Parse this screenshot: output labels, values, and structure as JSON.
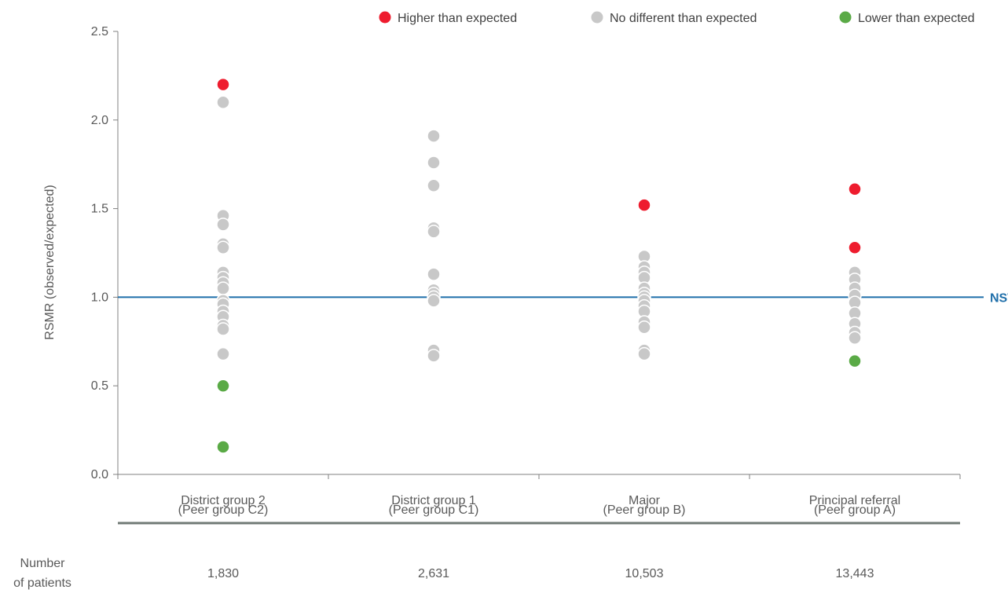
{
  "colors": {
    "higher": "#ee1c2e",
    "no_different": "#c8c8c8",
    "lower": "#5aaa46",
    "reference_line": "#1f6faa",
    "axis": "#808080",
    "table_rule": "#707a75"
  },
  "legend": [
    {
      "key": "higher",
      "label": "Higher than expected"
    },
    {
      "key": "no_different",
      "label": "No different than expected"
    },
    {
      "key": "lower",
      "label": "Lower than expected"
    }
  ],
  "patients_row": {
    "label_line1": "Number",
    "label_line2": "of patients",
    "values": [
      "1,830",
      "2,631",
      "10,503",
      "13,443"
    ]
  },
  "chart_data": {
    "type": "scatter",
    "title": "",
    "ylabel": "RSMR (observed/expected)",
    "xlabel": "",
    "ylim": [
      0,
      2.5
    ],
    "yticks": [
      "0.0",
      "0.5",
      "1.0",
      "1.5",
      "2.0",
      "2.5"
    ],
    "grid": false,
    "legend_position": "top-right",
    "reference_line": {
      "value": 1.0,
      "label": "NSW"
    },
    "categories": [
      {
        "line1": "District group 2",
        "line2": "(Peer group C2)"
      },
      {
        "line1": "District group 1",
        "line2": "(Peer group C1)"
      },
      {
        "line1": "Major",
        "line2": "(Peer group B)"
      },
      {
        "line1": "Principal referral",
        "line2": "(Peer group A)"
      }
    ],
    "series": [
      {
        "name": "Higher than expected",
        "key": "higher",
        "points": [
          {
            "category": 0,
            "y": 2.2
          },
          {
            "category": 2,
            "y": 1.52
          },
          {
            "category": 3,
            "y": 1.61
          },
          {
            "category": 3,
            "y": 1.28
          }
        ]
      },
      {
        "name": "No different than expected",
        "key": "no_different",
        "points": [
          {
            "category": 0,
            "y": 2.1
          },
          {
            "category": 0,
            "y": 1.46
          },
          {
            "category": 0,
            "y": 1.41
          },
          {
            "category": 0,
            "y": 1.3
          },
          {
            "category": 0,
            "y": 1.28
          },
          {
            "category": 0,
            "y": 1.14
          },
          {
            "category": 0,
            "y": 1.11
          },
          {
            "category": 0,
            "y": 1.08
          },
          {
            "category": 0,
            "y": 1.05
          },
          {
            "category": 0,
            "y": 0.98
          },
          {
            "category": 0,
            "y": 0.96
          },
          {
            "category": 0,
            "y": 0.92
          },
          {
            "category": 0,
            "y": 0.89
          },
          {
            "category": 0,
            "y": 0.84
          },
          {
            "category": 0,
            "y": 0.82
          },
          {
            "category": 0,
            "y": 0.68
          },
          {
            "category": 1,
            "y": 1.91
          },
          {
            "category": 1,
            "y": 1.76
          },
          {
            "category": 1,
            "y": 1.63
          },
          {
            "category": 1,
            "y": 1.39
          },
          {
            "category": 1,
            "y": 1.37
          },
          {
            "category": 1,
            "y": 1.13
          },
          {
            "category": 1,
            "y": 1.04
          },
          {
            "category": 1,
            "y": 1.02
          },
          {
            "category": 1,
            "y": 1.0
          },
          {
            "category": 1,
            "y": 0.98
          },
          {
            "category": 1,
            "y": 0.7
          },
          {
            "category": 1,
            "y": 0.67
          },
          {
            "category": 2,
            "y": 1.23
          },
          {
            "category": 2,
            "y": 1.17
          },
          {
            "category": 2,
            "y": 1.14
          },
          {
            "category": 2,
            "y": 1.11
          },
          {
            "category": 2,
            "y": 1.05
          },
          {
            "category": 2,
            "y": 1.02
          },
          {
            "category": 2,
            "y": 1.0
          },
          {
            "category": 2,
            "y": 0.98
          },
          {
            "category": 2,
            "y": 0.95
          },
          {
            "category": 2,
            "y": 0.92
          },
          {
            "category": 2,
            "y": 0.86
          },
          {
            "category": 2,
            "y": 0.83
          },
          {
            "category": 2,
            "y": 0.7
          },
          {
            "category": 2,
            "y": 0.68
          },
          {
            "category": 3,
            "y": 1.14
          },
          {
            "category": 3,
            "y": 1.1
          },
          {
            "category": 3,
            "y": 1.05
          },
          {
            "category": 3,
            "y": 1.01
          },
          {
            "category": 3,
            "y": 0.97
          },
          {
            "category": 3,
            "y": 0.91
          },
          {
            "category": 3,
            "y": 0.85
          },
          {
            "category": 3,
            "y": 0.8
          },
          {
            "category": 3,
            "y": 0.77
          }
        ]
      },
      {
        "name": "Lower than expected",
        "key": "lower",
        "points": [
          {
            "category": 0,
            "y": 0.5
          },
          {
            "category": 0,
            "y": 0.155
          },
          {
            "category": 3,
            "y": 0.64
          }
        ]
      }
    ]
  }
}
